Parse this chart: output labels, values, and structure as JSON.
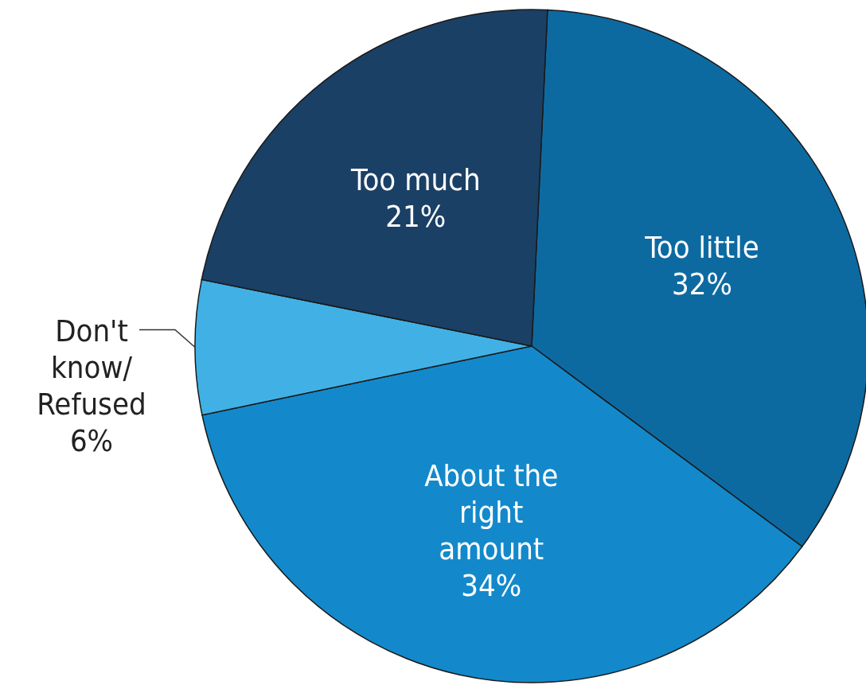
{
  "chart_data": {
    "type": "pie",
    "categories": [
      "Too little",
      "About the\nright\namount",
      "Don't\nknow/\nRefused",
      "Too much"
    ],
    "values": [
      32,
      34,
      6,
      21
    ],
    "value_labels": [
      "32%",
      "34%",
      "6%",
      "21%"
    ],
    "colors": [
      "#0d6aa1",
      "#1389cb",
      "#41b1e5",
      "#1b4066"
    ]
  }
}
